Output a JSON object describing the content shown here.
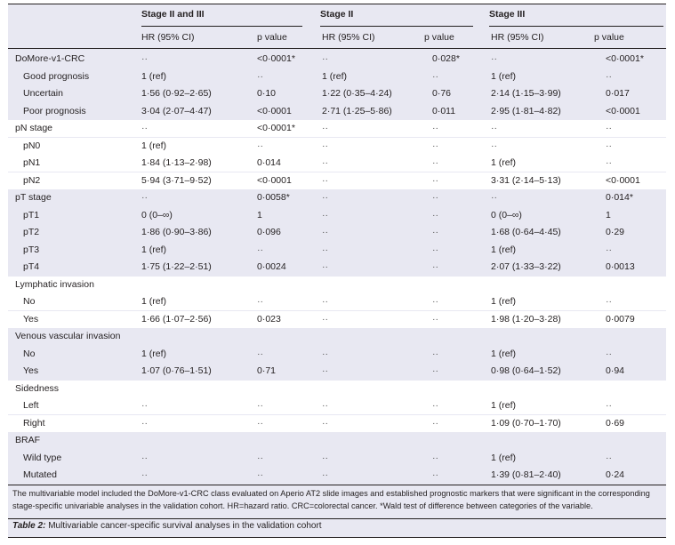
{
  "stages": [
    "Stage II and III",
    "Stage II",
    "Stage III"
  ],
  "col_headers": [
    "HR (95% CI)",
    "p value",
    "HR (95% CI)",
    "p value",
    "HR (95% CI)",
    "p value"
  ],
  "rows": [
    {
      "label": "DoMore-v1-CRC",
      "sub": false,
      "white": false,
      "cells": [
        "··",
        "<0·0001*",
        "··",
        "0·028*",
        "··",
        "<0·0001*"
      ]
    },
    {
      "label": "Good prognosis",
      "sub": true,
      "white": false,
      "cells": [
        "1 (ref)",
        "··",
        "1 (ref)",
        "··",
        "1 (ref)",
        "··"
      ]
    },
    {
      "label": "Uncertain",
      "sub": true,
      "white": false,
      "cells": [
        "1·56 (0·92–2·65)",
        "0·10",
        "1·22 (0·35–4·24)",
        "0·76",
        "2·14 (1·15–3·99)",
        "0·017"
      ]
    },
    {
      "label": "Poor prognosis",
      "sub": true,
      "white": false,
      "cells": [
        "3·04 (2·07–4·47)",
        "<0·0001",
        "2·71 (1·25–5·86)",
        "0·011",
        "2·95 (1·81–4·82)",
        "<0·0001"
      ]
    },
    {
      "label": "pN stage",
      "sub": false,
      "white": true,
      "cells": [
        "··",
        "<0·0001*",
        "··",
        "··",
        "··",
        "··"
      ]
    },
    {
      "label": "pN0",
      "sub": true,
      "white": true,
      "cells": [
        "1 (ref)",
        "··",
        "··",
        "··",
        "··",
        "··"
      ]
    },
    {
      "label": "pN1",
      "sub": true,
      "white": true,
      "cells": [
        "1·84 (1·13–2·98)",
        "0·014",
        "··",
        "··",
        "1 (ref)",
        "··"
      ]
    },
    {
      "label": "pN2",
      "sub": true,
      "white": true,
      "cells": [
        "5·94 (3·71–9·52)",
        "<0·0001",
        "··",
        "··",
        "3·31 (2·14–5·13)",
        "<0·0001"
      ]
    },
    {
      "label": "pT stage",
      "sub": false,
      "white": false,
      "cells": [
        "··",
        "0·0058*",
        "··",
        "··",
        "··",
        "0·014*"
      ]
    },
    {
      "label": "pT1",
      "sub": true,
      "white": false,
      "cells": [
        "0 (0–∞)",
        "1",
        "··",
        "··",
        "0 (0–∞)",
        "1"
      ]
    },
    {
      "label": "pT2",
      "sub": true,
      "white": false,
      "cells": [
        "1·86 (0·90–3·86)",
        "0·096",
        "··",
        "··",
        "1·68 (0·64–4·45)",
        "0·29"
      ]
    },
    {
      "label": "pT3",
      "sub": true,
      "white": false,
      "cells": [
        "1 (ref)",
        "··",
        "··",
        "··",
        "1 (ref)",
        "··"
      ]
    },
    {
      "label": "pT4",
      "sub": true,
      "white": false,
      "cells": [
        "1·75 (1·22–2·51)",
        "0·0024",
        "··",
        "··",
        "2·07 (1·33–3·22)",
        "0·0013"
      ]
    },
    {
      "label": "Lymphatic invasion",
      "sub": false,
      "white": true,
      "cells": [
        "",
        "",
        "",
        "",
        "",
        ""
      ]
    },
    {
      "label": "No",
      "sub": true,
      "white": true,
      "cells": [
        "1 (ref)",
        "··",
        "··",
        "··",
        "1 (ref)",
        "··"
      ]
    },
    {
      "label": "Yes",
      "sub": true,
      "white": true,
      "cells": [
        "1·66 (1·07–2·56)",
        "0·023",
        "··",
        "··",
        "1·98 (1·20–3·28)",
        "0·0079"
      ]
    },
    {
      "label": "Venous vascular invasion",
      "sub": false,
      "white": false,
      "cells": [
        "",
        "",
        "",
        "",
        "",
        ""
      ]
    },
    {
      "label": "No",
      "sub": true,
      "white": false,
      "cells": [
        "1 (ref)",
        "··",
        "··",
        "··",
        "1 (ref)",
        "··"
      ]
    },
    {
      "label": "Yes",
      "sub": true,
      "white": false,
      "cells": [
        "1·07 (0·76–1·51)",
        "0·71",
        "··",
        "··",
        "0·98 (0·64–1·52)",
        "0·94"
      ]
    },
    {
      "label": "Sidedness",
      "sub": false,
      "white": true,
      "cells": [
        "",
        "",
        "",
        "",
        "",
        ""
      ]
    },
    {
      "label": "Left",
      "sub": true,
      "white": true,
      "cells": [
        "··",
        "··",
        "··",
        "··",
        "1 (ref)",
        "··"
      ]
    },
    {
      "label": "Right",
      "sub": true,
      "white": true,
      "cells": [
        "··",
        "··",
        "··",
        "··",
        "1·09 (0·70–1·70)",
        "0·69"
      ]
    },
    {
      "label": "BRAF",
      "sub": false,
      "white": false,
      "cells": [
        "",
        "",
        "",
        "",
        "",
        ""
      ]
    },
    {
      "label": "Wild type",
      "sub": true,
      "white": false,
      "cells": [
        "··",
        "··",
        "··",
        "··",
        "1 (ref)",
        "··"
      ]
    },
    {
      "label": "Mutated",
      "sub": true,
      "white": false,
      "cells": [
        "··",
        "··",
        "··",
        "··",
        "1·39 (0·81–2·40)",
        "0·24"
      ]
    }
  ],
  "footnote": "The multivariable model included the DoMore-v1-CRC class evaluated on Aperio AT2 slide images and established prognostic markers that were significant in the corresponding stage-specific univariable analyses in the validation cohort. HR=hazard ratio. CRC=colorectal cancer. *Wald test of difference between categories of the variable.",
  "caption_label": "Table 2:",
  "caption_text": " Multivariable cancer-specific survival analyses in the validation cohort"
}
